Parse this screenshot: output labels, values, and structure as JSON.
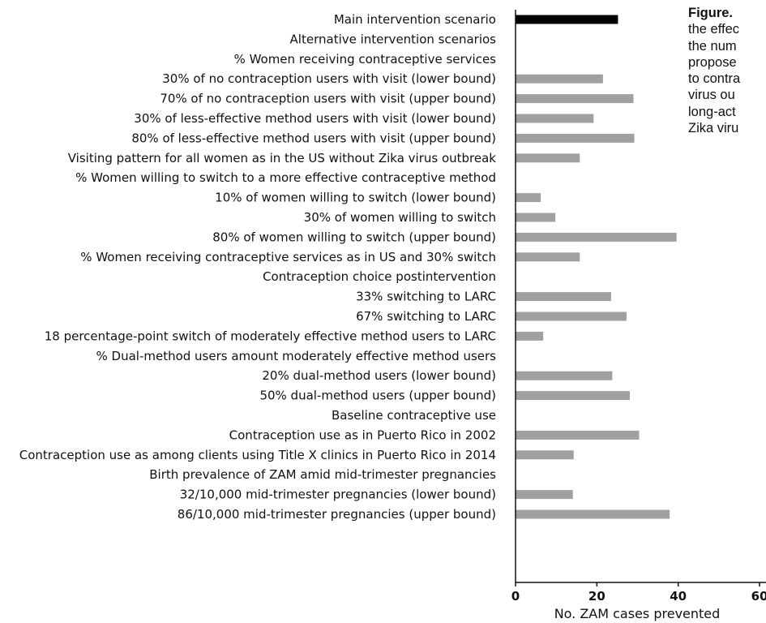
{
  "caption": {
    "heading": "Figure.",
    "lines": [
      "the effec",
      "the num",
      "propose",
      "to contra",
      "virus ou",
      "long-act",
      "Zika viru"
    ]
  },
  "chart_data": {
    "type": "bar",
    "orientation": "horizontal",
    "title": "",
    "xlabel": "No. ZAM cases prevented",
    "ylabel": "",
    "xlim": [
      0,
      60
    ],
    "xticks": [
      0,
      20,
      40,
      60
    ],
    "xtick_labels": [
      "0",
      "20",
      "40",
      "60"
    ],
    "grid": false,
    "legend": "none",
    "colors": {
      "main": "#000000",
      "other": "#a0a0a0",
      "axis": "#111111"
    },
    "categories": [
      "Main intervention scenario",
      "Alternative intervention scenarios",
      "% Women receiving contraceptive services",
      "30% of no contraception users with visit (lower bound)",
      "70% of no contraception users with visit (upper bound)",
      "30% of less-effective method users with visit (lower bound)",
      "80% of less-effective method users with visit (upper bound)",
      "Visiting pattern for all women as in the US without Zika virus outbreak",
      "% Women willing to switch to a more effective contraceptive method",
      "10% of women willing to switch (lower bound)",
      "30% of women willing to switch",
      "80% of women willing to switch (upper bound)",
      "% Women receiving contraceptive services as in US and 30% switch",
      "Contraception choice postintervention",
      "33% switching to LARC",
      "67% switching to LARC",
      "18 percentage-point switch of moderately effective method users to LARC",
      "% Dual-method users amount moderately effective method users",
      "20% dual-method users (lower bound)",
      "50% dual-method users (upper bound)",
      "Baseline contraceptive use",
      "Contraception use as in Puerto Rico in 2002",
      "Contraception use as among clients using Title X clinics in Puerto Rico in 2014",
      "Birth prevalence of ZAM amid mid-trimester pregnancies",
      "32/10,000 mid-trimester pregnancies (lower bound)",
      "86/10,000 mid-trimester pregnancies (upper bound)"
    ],
    "values": [
      25.2,
      null,
      null,
      21.5,
      29.0,
      19.2,
      29.2,
      15.8,
      null,
      6.2,
      9.8,
      39.6,
      15.8,
      null,
      23.5,
      27.3,
      6.8,
      null,
      23.8,
      28.1,
      null,
      30.4,
      14.3,
      null,
      14.1,
      37.9
    ]
  }
}
